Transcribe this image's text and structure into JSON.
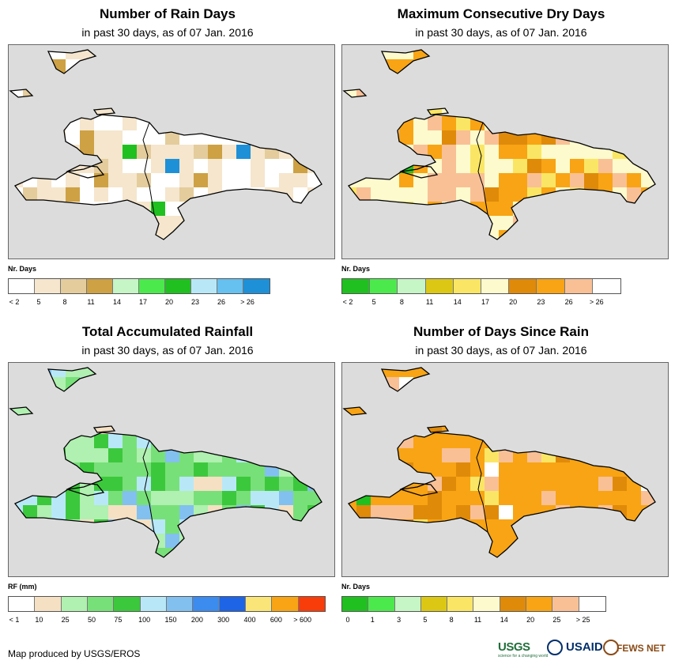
{
  "panels": [
    {
      "title": "Number of Rain Days",
      "subtitle": "in past 30 days, as of 07 Jan. 2016",
      "legend_title": "Nr. Days",
      "legend_colors": [
        "#ffffff",
        "#f5e6cd",
        "#e4cc9c",
        "#cda144",
        "#c6f5c6",
        "#4ce94c",
        "#20c020",
        "#b8e8f8",
        "#66c0f0",
        "#1e90d8"
      ],
      "legend_labels": [
        "< 2",
        "5",
        "8",
        "11",
        "14",
        "17",
        "20",
        "23",
        "26",
        "> 26"
      ]
    },
    {
      "title": "Maximum Consecutive Dry Days",
      "subtitle": "in past 30 days, as of 07 Jan. 2016",
      "legend_title": "Nr. Days",
      "legend_colors": [
        "#20c020",
        "#4ce94c",
        "#c6f5c6",
        "#dcc814",
        "#fae664",
        "#fdfacd",
        "#e08a0a",
        "#f8a414",
        "#f9c096",
        "#ffffff"
      ],
      "legend_labels": [
        "< 2",
        "5",
        "8",
        "11",
        "14",
        "17",
        "20",
        "23",
        "26",
        "> 26"
      ]
    },
    {
      "title": "Total Accumulated Rainfall",
      "subtitle": "in past 30 days, as of 07 Jan. 2016",
      "legend_title": "RF (mm)",
      "legend_colors": [
        "#ffffff",
        "#f5e0c3",
        "#b0f0b0",
        "#78e078",
        "#3cc83c",
        "#b8e8f8",
        "#82c0f0",
        "#3c8cf0",
        "#1e64e6",
        "#fae678",
        "#f8a414",
        "#f83c0a"
      ],
      "legend_labels": [
        "< 1",
        "10",
        "25",
        "50",
        "75",
        "100",
        "150",
        "200",
        "300",
        "400",
        "600",
        "> 600"
      ]
    },
    {
      "title": "Number of Days Since Rain",
      "subtitle": "in past 30 days, as of 07 Jan. 2016",
      "legend_title": "Nr. Days",
      "legend_colors": [
        "#20c020",
        "#4ce94c",
        "#c6f5c6",
        "#dcc814",
        "#fae664",
        "#fdfacd",
        "#e08a0a",
        "#f8a414",
        "#f9c096",
        "#ffffff"
      ],
      "legend_labels": [
        "0",
        "1",
        "3",
        "5",
        "8",
        "11",
        "14",
        "20",
        "25",
        "> 25"
      ]
    }
  ],
  "credit": "Map produced by USGS/EROS",
  "logos": {
    "usgs": "USGS",
    "usgs_tagline": "science for a changing world",
    "usaid": "USAID",
    "fews": "FEWS NET"
  }
}
